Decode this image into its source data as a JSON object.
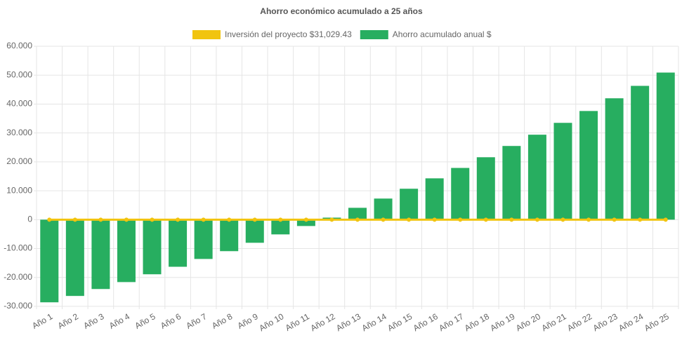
{
  "chart_data": {
    "type": "bar",
    "title": "Ahorro económico acumulado a 25 años",
    "categories": [
      "Año 1",
      "Año 2",
      "Año 3",
      "Año 4",
      "Año 5",
      "Año 6",
      "Año 7",
      "Año 8",
      "Año 9",
      "Año 10",
      "Año 11",
      "Año 12",
      "Año 13",
      "Año 14",
      "Año 15",
      "Año 16",
      "Año 17",
      "Año 18",
      "Año 19",
      "Año 20",
      "Año 21",
      "Año 22",
      "Año 23",
      "Año 24",
      "Año 25"
    ],
    "series": [
      {
        "name": "Inversión del proyecto $31,029.43",
        "type": "line",
        "color": "#f1c40f",
        "values": [
          0,
          0,
          0,
          0,
          0,
          0,
          0,
          0,
          0,
          0,
          0,
          0,
          0,
          0,
          0,
          0,
          0,
          0,
          0,
          0,
          0,
          0,
          0,
          0,
          0
        ]
      },
      {
        "name": "Ahorro acumulado anual $",
        "type": "bar",
        "color": "#27ae60",
        "values": [
          -28600,
          -26400,
          -24000,
          -21600,
          -18900,
          -16300,
          -13600,
          -10900,
          -8000,
          -5100,
          -2200,
          700,
          4100,
          7300,
          10700,
          14300,
          17900,
          21600,
          25500,
          29400,
          33500,
          37600,
          42000,
          46300,
          50900
        ]
      }
    ],
    "ylim": [
      -30000,
      60000
    ],
    "yticks": [
      {
        "value": -30000,
        "label": "-30.000"
      },
      {
        "value": -20000,
        "label": "-20.000"
      },
      {
        "value": -10000,
        "label": "-10.000"
      },
      0,
      {
        "value": 10000,
        "label": "10.000"
      },
      {
        "value": 20000,
        "label": "20.000"
      },
      {
        "value": 30000,
        "label": "30.000"
      },
      {
        "value": 40000,
        "label": "40.000"
      },
      {
        "value": 50000,
        "label": "50.000"
      },
      {
        "value": 60000,
        "label": "60.000"
      }
    ],
    "grid": true
  }
}
